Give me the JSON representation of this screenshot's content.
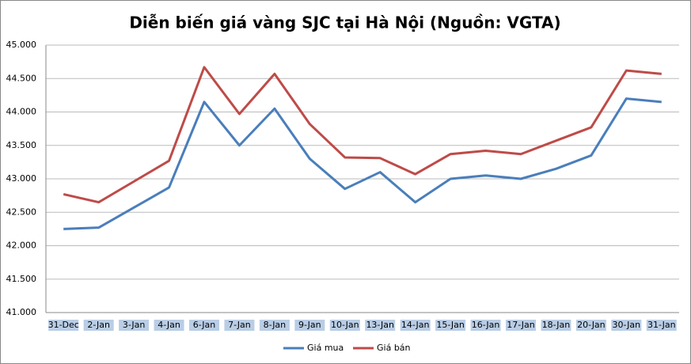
{
  "chart_data": {
    "type": "line",
    "title": "Diễn biến giá vàng SJC tại Hà Nội (Nguồn: VGTA)",
    "categories": [
      "31-Dec",
      "2-Jan",
      "3-Jan",
      "4-Jan",
      "6-Jan",
      "7-Jan",
      "8-Jan",
      "9-Jan",
      "10-Jan",
      "13-Jan",
      "14-Jan",
      "15-Jan",
      "16-Jan",
      "17-Jan",
      "18-Jan",
      "20-Jan",
      "30-Jan",
      "31-Jan"
    ],
    "series": [
      {
        "name": "Giá mua",
        "color": "#4a7ebb",
        "values": [
          42250,
          42270,
          42570,
          42870,
          44150,
          43500,
          44050,
          43300,
          42850,
          43100,
          42650,
          43000,
          43050,
          43000,
          43150,
          43350,
          44200,
          44150
        ]
      },
      {
        "name": "Giá bán",
        "color": "#be4b48",
        "values": [
          42770,
          42650,
          42960,
          43270,
          44670,
          43970,
          44570,
          43820,
          43320,
          43310,
          43070,
          43370,
          43420,
          43370,
          43570,
          43770,
          44620,
          44570
        ]
      }
    ],
    "ylim": [
      41000,
      45000
    ],
    "yticks": [
      {
        "value": 41000,
        "label": "41.000"
      },
      {
        "value": 41500,
        "label": "41.500"
      },
      {
        "value": 42000,
        "label": "42.000"
      },
      {
        "value": 42500,
        "label": "42.500"
      },
      {
        "value": 43000,
        "label": "43.000"
      },
      {
        "value": 43500,
        "label": "43.500"
      },
      {
        "value": 44000,
        "label": "44.000"
      },
      {
        "value": 44500,
        "label": "44.500"
      },
      {
        "value": 45000,
        "label": "45.000"
      }
    ],
    "grid": true,
    "legend": "bottom"
  }
}
